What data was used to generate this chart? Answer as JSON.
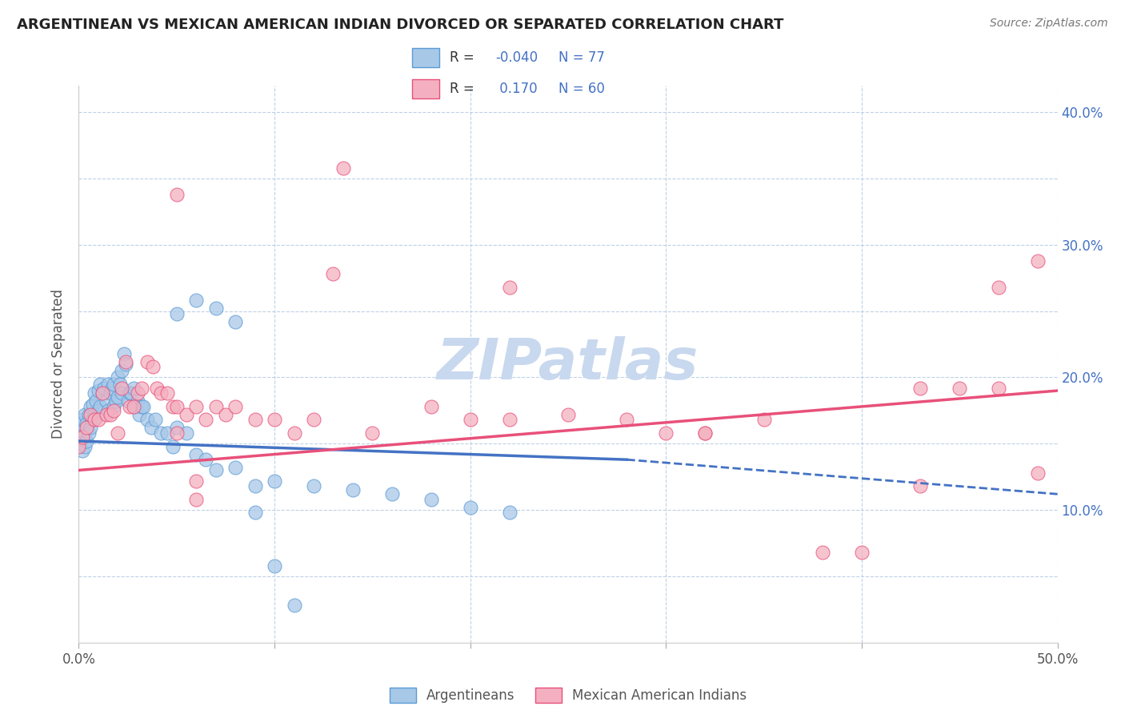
{
  "title": "ARGENTINEAN VS MEXICAN AMERICAN INDIAN DIVORCED OR SEPARATED CORRELATION CHART",
  "source": "Source: ZipAtlas.com",
  "ylabel": "Divorced or Separated",
  "color_blue": "#a8c8e8",
  "color_pink": "#f4b0c0",
  "color_blue_edge": "#5b9bd5",
  "color_pink_edge": "#e8507a",
  "color_blue_line": "#4472c4",
  "color_pink_line": "#e8507a",
  "color_r_value": "#4472c4",
  "watermark": "ZIPatlas",
  "watermark_color": "#c8d8ee",
  "R_blue": -0.04,
  "N_blue": 77,
  "R_pink": 0.17,
  "N_pink": 60,
  "xlim": [
    0.0,
    0.5
  ],
  "ylim": [
    0.0,
    0.42
  ],
  "blue_x": [
    0.0,
    0.0,
    0.001,
    0.001,
    0.002,
    0.002,
    0.003,
    0.003,
    0.004,
    0.004,
    0.005,
    0.005,
    0.006,
    0.006,
    0.007,
    0.007,
    0.008,
    0.008,
    0.009,
    0.009,
    0.01,
    0.01,
    0.011,
    0.011,
    0.012,
    0.013,
    0.014,
    0.015,
    0.015,
    0.016,
    0.017,
    0.018,
    0.018,
    0.019,
    0.02,
    0.02,
    0.021,
    0.022,
    0.022,
    0.023,
    0.024,
    0.025,
    0.026,
    0.027,
    0.028,
    0.029,
    0.03,
    0.031,
    0.032,
    0.033,
    0.035,
    0.037,
    0.039,
    0.042,
    0.045,
    0.048,
    0.05,
    0.055,
    0.06,
    0.065,
    0.07,
    0.08,
    0.09,
    0.1,
    0.12,
    0.14,
    0.16,
    0.18,
    0.2,
    0.22,
    0.05,
    0.06,
    0.07,
    0.08,
    0.09,
    0.1,
    0.11
  ],
  "blue_y": [
    0.155,
    0.16,
    0.15,
    0.165,
    0.145,
    0.168,
    0.148,
    0.172,
    0.152,
    0.165,
    0.158,
    0.172,
    0.162,
    0.178,
    0.168,
    0.18,
    0.172,
    0.188,
    0.17,
    0.182,
    0.175,
    0.19,
    0.178,
    0.195,
    0.188,
    0.192,
    0.182,
    0.195,
    0.175,
    0.188,
    0.192,
    0.195,
    0.178,
    0.182,
    0.2,
    0.185,
    0.195,
    0.205,
    0.188,
    0.218,
    0.21,
    0.182,
    0.188,
    0.188,
    0.192,
    0.178,
    0.182,
    0.172,
    0.178,
    0.178,
    0.168,
    0.162,
    0.168,
    0.158,
    0.158,
    0.148,
    0.162,
    0.158,
    0.142,
    0.138,
    0.13,
    0.132,
    0.118,
    0.122,
    0.118,
    0.115,
    0.112,
    0.108,
    0.102,
    0.098,
    0.248,
    0.258,
    0.252,
    0.242,
    0.098,
    0.058,
    0.028
  ],
  "pink_x": [
    0.0,
    0.002,
    0.004,
    0.006,
    0.008,
    0.01,
    0.012,
    0.014,
    0.016,
    0.018,
    0.02,
    0.022,
    0.024,
    0.026,
    0.028,
    0.03,
    0.032,
    0.035,
    0.038,
    0.04,
    0.042,
    0.045,
    0.048,
    0.05,
    0.055,
    0.06,
    0.065,
    0.07,
    0.075,
    0.08,
    0.09,
    0.1,
    0.11,
    0.12,
    0.13,
    0.15,
    0.18,
    0.2,
    0.22,
    0.25,
    0.28,
    0.3,
    0.32,
    0.35,
    0.38,
    0.4,
    0.43,
    0.45,
    0.47,
    0.49,
    0.05,
    0.06,
    0.22,
    0.135,
    0.05,
    0.06,
    0.32,
    0.43,
    0.47,
    0.49
  ],
  "pink_y": [
    0.148,
    0.155,
    0.162,
    0.172,
    0.168,
    0.168,
    0.188,
    0.172,
    0.172,
    0.175,
    0.158,
    0.192,
    0.212,
    0.178,
    0.178,
    0.188,
    0.192,
    0.212,
    0.208,
    0.192,
    0.188,
    0.188,
    0.178,
    0.178,
    0.172,
    0.178,
    0.168,
    0.178,
    0.172,
    0.178,
    0.168,
    0.168,
    0.158,
    0.168,
    0.278,
    0.158,
    0.178,
    0.168,
    0.168,
    0.172,
    0.168,
    0.158,
    0.158,
    0.168,
    0.068,
    0.068,
    0.192,
    0.192,
    0.192,
    0.128,
    0.158,
    0.122,
    0.268,
    0.358,
    0.338,
    0.108,
    0.158,
    0.118,
    0.268,
    0.288
  ]
}
